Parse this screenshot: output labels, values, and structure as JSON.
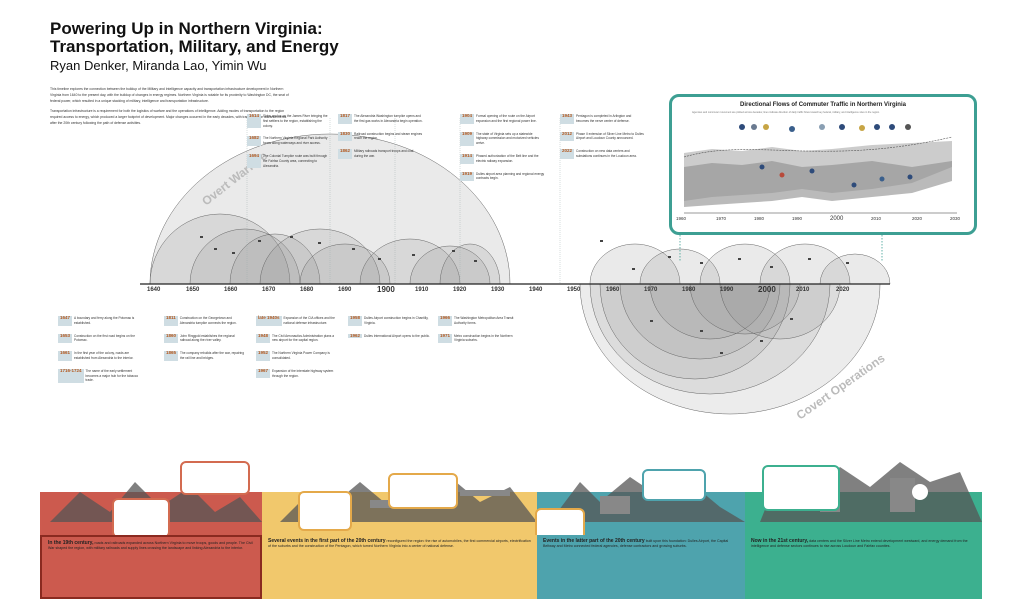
{
  "title": {
    "line1": "Powering Up in Northern Virginia:",
    "line2": "Transportation, Military, and Energy",
    "authors": "Ryan Denker, Miranda Lao, Yimin Wu"
  },
  "intro": {
    "p1": "This timeline explores the connection between the buildup of the Military and Intelligence capacity and transportation infrastructure development in Northern Virginia from 1640 to the present day, with the buildup of changes in energy regimes. Northern Virginia is notable for its proximity to Washington DC, the seat of federal power, which resulted in a unique stacking of military, intelligence and transportation infrastructure.",
    "p2": "Transportation infrastructure is a requirement for both the logistics of warfare and the operations of intelligence. Adding modes of transportation to the region required access to energy, which produced a larger footprint of development. Major changes occurred in the early decades, with transportation advancements after the 20th century following the path of defense activities."
  },
  "arc_labels": {
    "overt": "Overt Warfare",
    "covert": "Covert Operations"
  },
  "axis_years": [
    "1640",
    "1650",
    "1660",
    "1670",
    "1680",
    "1690",
    "1900",
    "1910",
    "1920",
    "1930",
    "1940",
    "1950",
    "1960",
    "1970",
    "1980",
    "1990",
    "2000",
    "2010",
    "2020"
  ],
  "upper_notes": [
    {
      "year": "1614",
      "text": "Ships anchor on the James River bringing the first settlers to the region, establishing the colony."
    },
    {
      "year": "1682",
      "text": "The Northern Virginia Regional Park Authority forms along waterways and river access."
    },
    {
      "year": "1694",
      "text": "The Colonial Turnpike route was built through the Fairfax County area, connecting to Alexandria."
    },
    {
      "year": "1817",
      "text": "The Alexandria Washington turnpike opens and the first gas works in Alexandria begin operation."
    },
    {
      "year": "1830",
      "text": "Railroad construction begins and steam engines reach the region."
    },
    {
      "year": "1862",
      "text": "Military railroads transport troops and coal during the war."
    },
    {
      "year": "1904",
      "text": "Formal opening of the route on the Airport expansion and the first regional power line."
    },
    {
      "year": "1909",
      "text": "The state of Virginia sets up a statewide highway commission and motorized vehicles arrive."
    },
    {
      "year": "1914",
      "text": "Phased authorization of the Belt line and the electric railway expansion."
    },
    {
      "year": "1919",
      "text": "Dulles airport area planning and regional energy contracts begin."
    },
    {
      "year": "1943",
      "text": "Pentagon is completed in Arlington and becomes the nerve center of defense."
    },
    {
      "year": "2012",
      "text": "Phase II extension of Silver Line Metro to Dulles Airport and Loudoun County announced."
    },
    {
      "year": "2022",
      "text": "Construction on new data centers and substations continues in the Loudoun area."
    }
  ],
  "lower_columns": [
    {
      "items": [
        {
          "year": "1647",
          "text": "A boundary and ferry along the Potomac is established."
        },
        {
          "year": "1653",
          "text": "Construction on the first road begins on the Potomac."
        },
        {
          "year": "1661",
          "text": "In the first year of the colony, roads are established from Alexandria to the interior."
        },
        {
          "year": "1716-1724",
          "text": "The name of the early settlement becomes a major hub for the tobacco trade."
        }
      ]
    },
    {
      "items": [
        {
          "year": "1811",
          "text": "Construction on the Georgetown and Alexandria turnpike connects the region."
        },
        {
          "year": "1860",
          "text": "John Ringgold establishes the regional railroad along the river valley."
        },
        {
          "year": "1865",
          "text": "The company rebuilds after the war, repairing the rail line and bridges."
        }
      ]
    },
    {
      "items": [
        {
          "year": "late 1940s",
          "text": "Expansion of the CIA offices and the national defense infrastructure."
        },
        {
          "year": "1948",
          "text": "The Civil Aeronautics Administration plans a new airport for the capital region."
        },
        {
          "year": "1952",
          "text": "The Northern Virginia Power Company is consolidated."
        },
        {
          "year": "1967",
          "text": "Expansion of the interstate highway system through the region."
        }
      ]
    },
    {
      "items": [
        {
          "year": "1958",
          "text": "Dulles Airport construction begins in Chantilly, Virginia."
        },
        {
          "year": "1962",
          "text": "Dulles International Airport opens to the public."
        }
      ]
    },
    {
      "items": [
        {
          "year": "1966",
          "text": "The Washington Metropolitan Area Transit Authority forms."
        },
        {
          "year": "1971",
          "text": "Metro construction begins in the Northern Virginia suburbs."
        }
      ]
    }
  ],
  "inset": {
    "title": "Directional Flows of Commuter Traffic in Northern Virginia",
    "subtitle": "Agencies and commuter movement are plotted across decades; lines indicate direction of daily traffic flows toward key federal, military, and intelligence sites in the region.",
    "years": [
      "1960",
      "1970",
      "1980",
      "1990",
      "2000",
      "2010",
      "2020",
      "2030"
    ]
  },
  "panels": [
    {
      "heading": "In the 19th century,",
      "text": "roads and railroads expanded across Northern Virginia to move troops, goods and people. The Civil War shaped the region, with military railroads and supply lines crossing the landscape and linking Alexandria to the interior."
    },
    {
      "heading": "Several events in the first part of the 20th century",
      "text": "reconfigured the region: the rise of automobiles, the first commercial airports, electrification of the suburbs and the construction of the Pentagon, which turned Northern Virginia into a center of national defense."
    },
    {
      "heading": "Events in the latter part of the 20th century",
      "text": "built upon this foundation: Dulles Airport, the Capital Beltway and Metro connected federal agencies, defense contractors and growing suburbs."
    },
    {
      "heading": "Now in the 21st century,",
      "text": "data centers and the Silver Line Metro extend development westward, and energy demand from the intelligence and defense sectors continues to rise across Loudoun and Fairfax counties."
    }
  ],
  "colors": {
    "red": "#cc5a4e",
    "yellow": "#f1c86c",
    "teal": "#4ea3ad",
    "green": "#3cb08f",
    "note": "#cfdde3",
    "year": "#b3581e"
  }
}
